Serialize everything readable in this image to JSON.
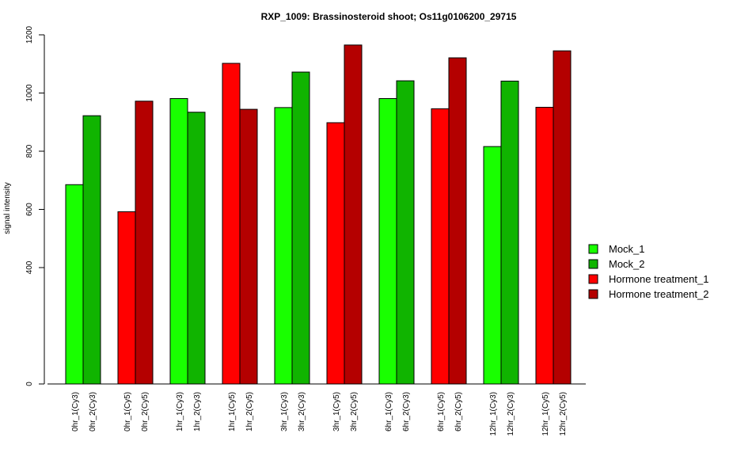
{
  "chart_data": {
    "type": "bar",
    "title": "RXP_1009: Brassinosteroid shoot; Os11g0106200_29715",
    "ylabel": "signal intensity",
    "xlabel": "",
    "ylim": [
      0,
      1200
    ],
    "yticks": [
      0,
      400,
      600,
      800,
      1000,
      1200
    ],
    "legend_position": "right",
    "series": [
      {
        "name": "Mock_1",
        "color": "#19ff00"
      },
      {
        "name": "Mock_2",
        "color": "#10b400"
      },
      {
        "name": "Hormone treatment_1",
        "color": "#ff0000"
      },
      {
        "name": "Hormone treatment_2",
        "color": "#b40000"
      }
    ],
    "bars": [
      {
        "label": "0hr_1(Cy3)",
        "value": 685,
        "series": 0
      },
      {
        "label": "0hr_2(Cy3)",
        "value": 922,
        "series": 1
      },
      {
        "label": "0hr_1(Cy5)",
        "value": 592,
        "series": 2
      },
      {
        "label": "0hr_2(Cy5)",
        "value": 972,
        "series": 3
      },
      {
        "label": "1hr_1(Cy3)",
        "value": 981,
        "series": 0
      },
      {
        "label": "1hr_2(Cy3)",
        "value": 934,
        "series": 1
      },
      {
        "label": "1hr_1(Cy5)",
        "value": 1102,
        "series": 2
      },
      {
        "label": "1hr_2(Cy5)",
        "value": 944,
        "series": 3
      },
      {
        "label": "3hr_1(Cy3)",
        "value": 950,
        "series": 0
      },
      {
        "label": "3hr_2(Cy3)",
        "value": 1072,
        "series": 1
      },
      {
        "label": "3hr_1(Cy5)",
        "value": 898,
        "series": 2
      },
      {
        "label": "3hr_2(Cy5)",
        "value": 1165,
        "series": 3
      },
      {
        "label": "6hr_1(Cy3)",
        "value": 981,
        "series": 0
      },
      {
        "label": "6hr_2(Cy3)",
        "value": 1042,
        "series": 1
      },
      {
        "label": "6hr_1(Cy5)",
        "value": 946,
        "series": 2
      },
      {
        "label": "6hr_2(Cy5)",
        "value": 1121,
        "series": 3
      },
      {
        "label": "12hr_1(Cy3)",
        "value": 816,
        "series": 0
      },
      {
        "label": "12hr_2(Cy3)",
        "value": 1041,
        "series": 1
      },
      {
        "label": "12hr_1(Cy5)",
        "value": 951,
        "series": 2
      },
      {
        "label": "12hr_2(Cy5)",
        "value": 1145,
        "series": 3
      }
    ]
  }
}
